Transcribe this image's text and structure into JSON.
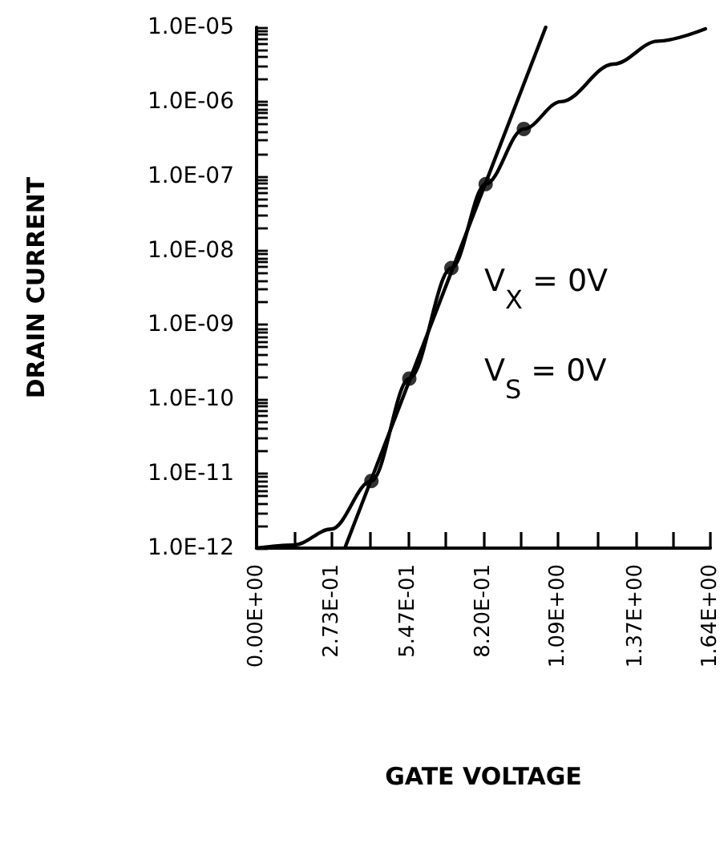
{
  "chart_data": {
    "type": "line",
    "xlabel": "GATE VOLTAGE",
    "ylabel": "DRAIN CURRENT",
    "log": "y",
    "grid": false,
    "xlim": [
      0,
      1.64
    ],
    "ylim": [
      1e-12,
      1e-05
    ],
    "xticks": [
      {
        "value": 0,
        "label": "0.00E+00"
      },
      {
        "value": 0.137,
        "label": null
      },
      {
        "value": 0.273,
        "label": "2.73E-01"
      },
      {
        "value": 0.41,
        "label": null
      },
      {
        "value": 0.547,
        "label": "5.47E-01"
      },
      {
        "value": 0.684,
        "label": null
      },
      {
        "value": 0.82,
        "label": "8.20E-01"
      },
      {
        "value": 0.957,
        "label": null
      },
      {
        "value": 1.09,
        "label": "1.09E+00"
      },
      {
        "value": 1.23,
        "label": null
      },
      {
        "value": 1.37,
        "label": "1.37E+00"
      },
      {
        "value": 1.505,
        "label": null
      },
      {
        "value": 1.64,
        "label": "1.64E+00"
      }
    ],
    "yticks": [
      {
        "value": 1e-12,
        "label": "1.0E-12"
      },
      {
        "value": 2e-12,
        "label": null
      },
      {
        "value": 3e-12,
        "label": null
      },
      {
        "value": 4e-12,
        "label": null
      },
      {
        "value": 5e-12,
        "label": null
      },
      {
        "value": 6e-12,
        "label": null
      },
      {
        "value": 7e-12,
        "label": null
      },
      {
        "value": 8e-12,
        "label": null
      },
      {
        "value": 9e-12,
        "label": null
      },
      {
        "value": 1e-11,
        "label": "1.0E-11"
      },
      {
        "value": 2e-11,
        "label": null
      },
      {
        "value": 3e-11,
        "label": null
      },
      {
        "value": 4e-11,
        "label": null
      },
      {
        "value": 5e-11,
        "label": null
      },
      {
        "value": 6e-11,
        "label": null
      },
      {
        "value": 7e-11,
        "label": null
      },
      {
        "value": 8e-11,
        "label": null
      },
      {
        "value": 9e-11,
        "label": null
      },
      {
        "value": 1e-10,
        "label": "1.0E-10"
      },
      {
        "value": 2e-10,
        "label": null
      },
      {
        "value": 3e-10,
        "label": null
      },
      {
        "value": 4e-10,
        "label": null
      },
      {
        "value": 5e-10,
        "label": null
      },
      {
        "value": 6e-10,
        "label": null
      },
      {
        "value": 7e-10,
        "label": null
      },
      {
        "value": 8e-10,
        "label": null
      },
      {
        "value": 9e-10,
        "label": null
      },
      {
        "value": 1e-09,
        "label": "1.0E-09"
      },
      {
        "value": 2e-09,
        "label": null
      },
      {
        "value": 3e-09,
        "label": null
      },
      {
        "value": 4e-09,
        "label": null
      },
      {
        "value": 5e-09,
        "label": null
      },
      {
        "value": 6e-09,
        "label": null
      },
      {
        "value": 7e-09,
        "label": null
      },
      {
        "value": 8e-09,
        "label": null
      },
      {
        "value": 9e-09,
        "label": null
      },
      {
        "value": 1e-08,
        "label": "1.0E-08"
      },
      {
        "value": 2e-08,
        "label": null
      },
      {
        "value": 3e-08,
        "label": null
      },
      {
        "value": 4e-08,
        "label": null
      },
      {
        "value": 5e-08,
        "label": null
      },
      {
        "value": 6e-08,
        "label": null
      },
      {
        "value": 7e-08,
        "label": null
      },
      {
        "value": 8e-08,
        "label": null
      },
      {
        "value": 9e-08,
        "label": null
      },
      {
        "value": 1e-07,
        "label": "1.0E-07"
      },
      {
        "value": 2e-07,
        "label": null
      },
      {
        "value": 3e-07,
        "label": null
      },
      {
        "value": 4e-07,
        "label": null
      },
      {
        "value": 5e-07,
        "label": null
      },
      {
        "value": 6e-07,
        "label": null
      },
      {
        "value": 7e-07,
        "label": null
      },
      {
        "value": 8e-07,
        "label": null
      },
      {
        "value": 9e-07,
        "label": null
      },
      {
        "value": 1e-06,
        "label": "1.0E-06"
      },
      {
        "value": 2e-06,
        "label": null
      },
      {
        "value": 3e-06,
        "label": null
      },
      {
        "value": 4e-06,
        "label": null
      },
      {
        "value": 5e-06,
        "label": null
      },
      {
        "value": 6e-06,
        "label": null
      },
      {
        "value": 7e-06,
        "label": null
      },
      {
        "value": 8e-06,
        "label": null
      },
      {
        "value": 9e-06,
        "label": null
      },
      {
        "value": 1e-05,
        "label": "1.0E-05"
      }
    ],
    "annotations": [
      "V$_{X}$ = 0V",
      "V$_{S}$ = 0V"
    ],
    "series": [
      {
        "type": "line",
        "color": "#000000",
        "marker": "none",
        "line_style": "solid",
        "x": [
          0,
          0.135,
          0.27,
          0.415,
          0.552,
          0.704,
          0.828,
          0.966,
          1.1,
          1.29,
          1.45,
          1.622
        ],
        "values": [
          1e-12,
          1.1e-12,
          1.8e-12,
          8e-12,
          1.9e-10,
          5.8e-09,
          7.8e-08,
          4.3e-07,
          1e-06,
          3.2e-06,
          6.5e-06,
          9.5e-06
        ]
      },
      {
        "type": "line",
        "color": "#000000",
        "marker": "none",
        "line_style": "solid",
        "x": [
          0.319,
          1.045
        ],
        "values": [
          1e-12,
          1e-05
        ]
      },
      {
        "type": "scatter",
        "color": "#000000",
        "marker": "circle",
        "x": [
          0.415,
          0.552,
          0.704,
          0.828,
          0.966
        ],
        "values": [
          8e-12,
          1.9e-10,
          5.8e-09,
          7.8e-08,
          4.3e-07
        ]
      }
    ]
  }
}
